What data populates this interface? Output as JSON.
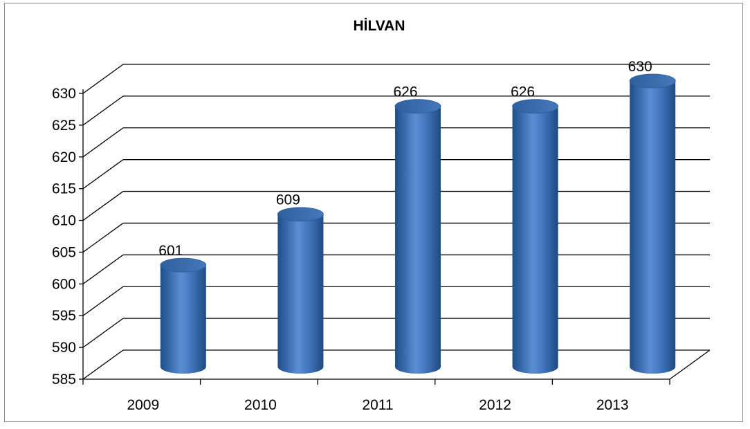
{
  "chart_data": {
    "type": "bar",
    "title": "HİLVAN",
    "categories": [
      "2009",
      "2010",
      "2011",
      "2012",
      "2013"
    ],
    "values": [
      601,
      609,
      626,
      626,
      630
    ],
    "data_labels": [
      "601",
      "609",
      "626",
      "626",
      "630"
    ],
    "ylim": [
      585,
      630
    ],
    "yticks": [
      "585",
      "590",
      "595",
      "600",
      "605",
      "610",
      "615",
      "620",
      "625",
      "630"
    ],
    "xlabel": "",
    "ylabel": "",
    "grid": true,
    "legend": "none",
    "style": "3d-cylinder",
    "bar_color": "#4f81bd"
  }
}
